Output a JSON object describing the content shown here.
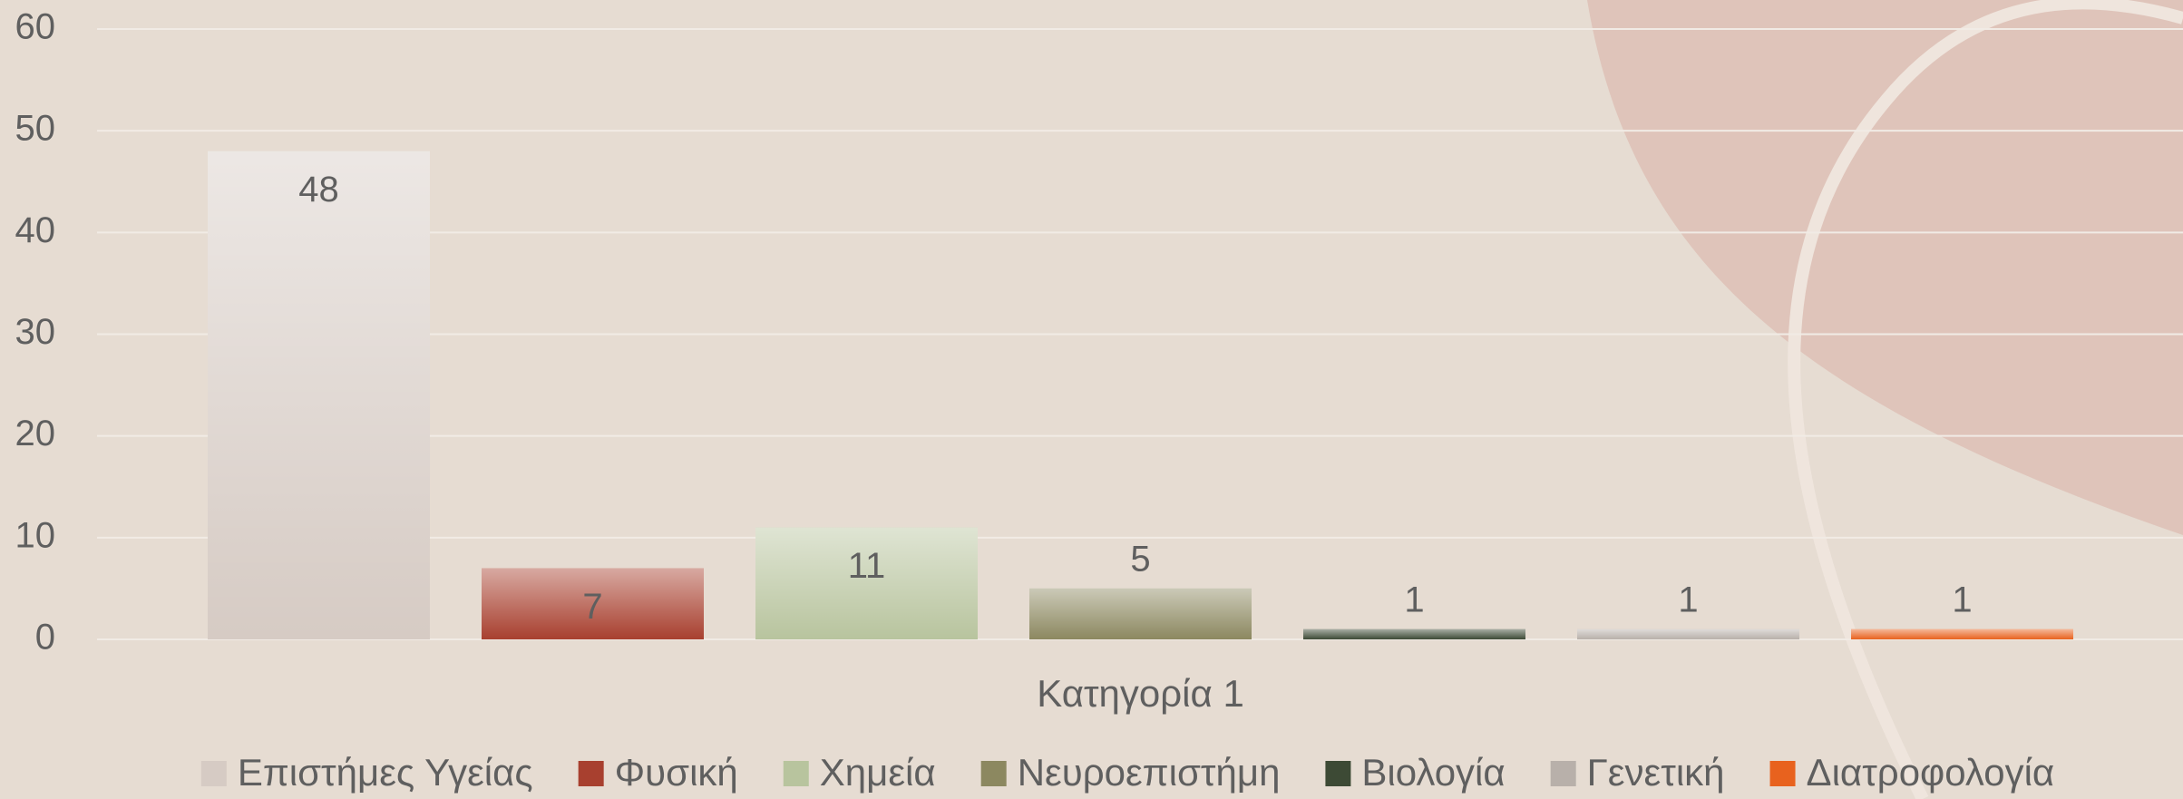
{
  "chart_data": {
    "type": "bar",
    "categories": [
      "Κατηγορία 1"
    ],
    "series": [
      {
        "name": "Επιστήμες Υγείας",
        "color": "#d6cbc4",
        "values": [
          48
        ]
      },
      {
        "name": "Φυσική",
        "color": "#a8402f",
        "values": [
          7
        ]
      },
      {
        "name": "Χημεία",
        "color": "#b8c49e",
        "values": [
          11
        ]
      },
      {
        "name": "Νευροεπιστήμη",
        "color": "#8c8860",
        "values": [
          5
        ]
      },
      {
        "name": "Βιολογία",
        "color": "#3d4a35",
        "values": [
          1
        ]
      },
      {
        "name": "Γενετική",
        "color": "#b8b0aa",
        "values": [
          1
        ]
      },
      {
        "name": "Διατροφολογία",
        "color": "#e8621e",
        "values": [
          1
        ]
      }
    ],
    "ylim": [
      0,
      60
    ],
    "yticks": [
      0,
      10,
      20,
      30,
      40,
      50,
      60
    ],
    "grid": true,
    "legend": "bottom"
  }
}
